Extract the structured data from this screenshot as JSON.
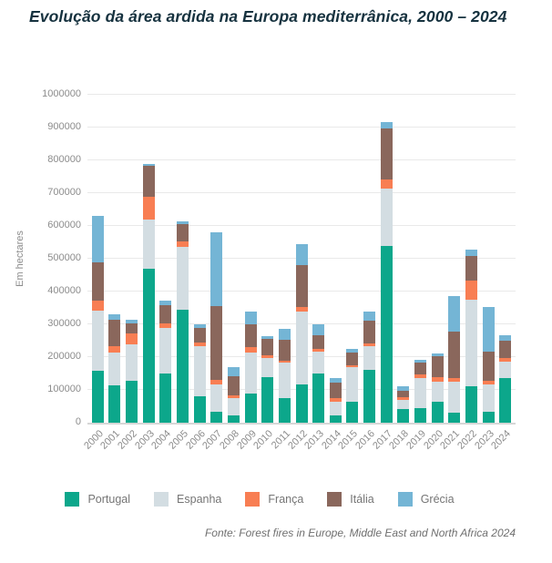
{
  "title": "Evolução da área ardida na Europa mediterrânica, 2000 – 2024",
  "source": "Fonte: Forest fires in Europe, Middle East and North Africa 2024",
  "colors": {
    "title_text": "#16323f",
    "axis_text": "#8c8c8c",
    "legend_text": "#757575",
    "gridline": "#e9e9e9",
    "portugal": "#0ca78b",
    "espanha": "#d3dde2",
    "franca": "#f87e53",
    "italia": "#8a675c",
    "grecia": "#74b5d5"
  },
  "chart_data": {
    "type": "bar",
    "stacked": true,
    "title": "Evolução da área ardida na Europa mediterrânica, 2000 – 2024",
    "xlabel": "",
    "ylabel": "Em hectares",
    "ylim": [
      0,
      1000000
    ],
    "ytick_step": 100000,
    "yticks": [
      0,
      100000,
      200000,
      300000,
      400000,
      500000,
      600000,
      700000,
      800000,
      900000,
      1000000
    ],
    "grid": true,
    "legend_position": "bottom",
    "categories": [
      "2000",
      "2001",
      "2002",
      "2003",
      "2004",
      "2005",
      "2006",
      "2007",
      "2008",
      "2009",
      "2010",
      "2011",
      "2012",
      "2013",
      "2014",
      "2015",
      "2016",
      "2017",
      "2018",
      "2019",
      "2020",
      "2021",
      "2022",
      "2023",
      "2024"
    ],
    "series": [
      {
        "name": "Portugal",
        "color": "#0ca78b",
        "values": [
          158000,
          115000,
          127000,
          470000,
          150000,
          345000,
          80000,
          34000,
          23000,
          88000,
          139000,
          75000,
          116000,
          150000,
          22000,
          64000,
          162000,
          539000,
          42000,
          45000,
          64000,
          30000,
          110000,
          34000,
          136000
        ]
      },
      {
        "name": "Espanha",
        "color": "#d3dde2",
        "values": [
          185000,
          100000,
          111000,
          150000,
          139000,
          190000,
          153000,
          83000,
          51000,
          127000,
          57000,
          107000,
          222000,
          68000,
          43000,
          105000,
          71000,
          174000,
          28000,
          90000,
          61000,
          94000,
          266000,
          83000,
          51000
        ]
      },
      {
        "name": "França",
        "color": "#f87e53",
        "values": [
          29000,
          19000,
          34000,
          68000,
          15000,
          19000,
          12000,
          14000,
          9000,
          17000,
          11000,
          7000,
          14000,
          6000,
          10000,
          7000,
          10000,
          30000,
          8000,
          12000,
          14000,
          12000,
          57000,
          11000,
          9000
        ]
      },
      {
        "name": "Itália",
        "color": "#8a675c",
        "values": [
          118000,
          80000,
          31000,
          95000,
          54000,
          51000,
          44000,
          224000,
          59000,
          67000,
          49000,
          65000,
          130000,
          42000,
          48000,
          37000,
          67000,
          155000,
          19000,
          36000,
          64000,
          142000,
          75000,
          89000,
          55000
        ]
      },
      {
        "name": "Grécia",
        "color": "#74b5d5",
        "values": [
          140000,
          16000,
          12000,
          7000,
          14000,
          9000,
          11000,
          225000,
          28000,
          39000,
          7000,
          33000,
          62000,
          34000,
          14000,
          13000,
          28000,
          20000,
          14000,
          8000,
          9000,
          108000,
          20000,
          135000,
          17000
        ]
      }
    ]
  }
}
